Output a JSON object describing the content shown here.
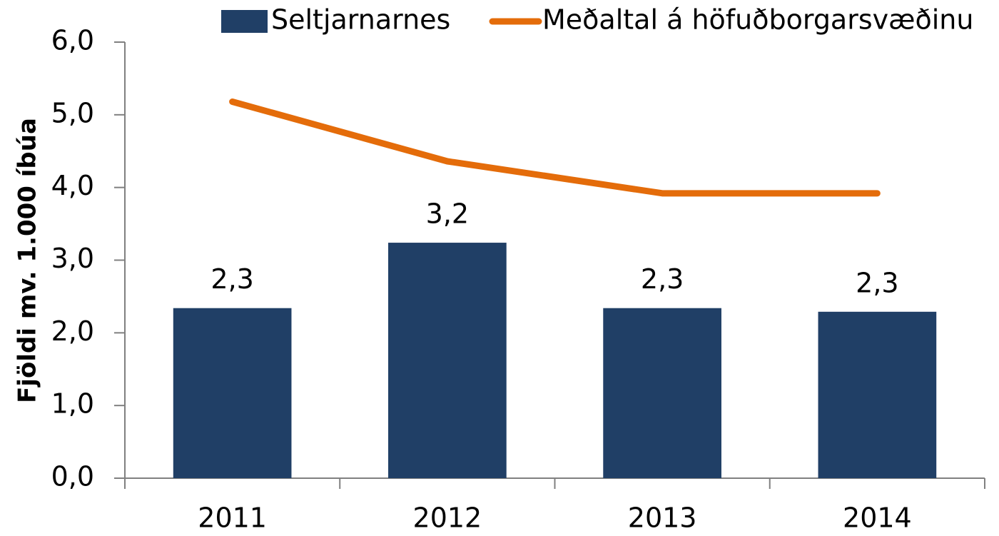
{
  "chart_data": {
    "type": "bar_line",
    "ylabel": "Fjöldi mv. 1.000 íbúa",
    "categories": [
      "2011",
      "2012",
      "2013",
      "2014"
    ],
    "series": [
      {
        "name": "Seltjarnarnes",
        "type": "bar",
        "color": "#203f66",
        "values": [
          2.34,
          3.24,
          2.34,
          2.29
        ],
        "value_labels": [
          "2,3",
          "3,2",
          "2,3",
          "2,3"
        ]
      },
      {
        "name": "Meðaltal á höfuðborgarsvæðinu",
        "type": "line",
        "color": "#e46c0a",
        "values": [
          5.18,
          4.36,
          3.92,
          3.92
        ]
      }
    ],
    "ylim": [
      0,
      6
    ],
    "yticks": [
      {
        "value": 0,
        "label": "0,0"
      },
      {
        "value": 1,
        "label": "1,0"
      },
      {
        "value": 2,
        "label": "2,0"
      },
      {
        "value": 3,
        "label": "3,0"
      },
      {
        "value": 4,
        "label": "4,0"
      },
      {
        "value": 5,
        "label": "5,0"
      },
      {
        "value": 6,
        "label": "6,0"
      }
    ],
    "grid": false,
    "legend": "top"
  }
}
